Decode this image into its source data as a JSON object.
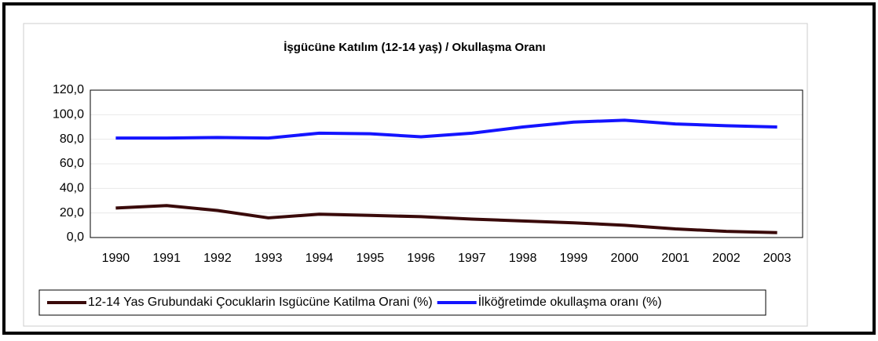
{
  "chart_data": {
    "type": "line",
    "title": "İşgücüne Katılım (12-14 yaş) / Okullaşma Oranı",
    "categories": [
      "1990",
      "1991",
      "1992",
      "1993",
      "1994",
      "1995",
      "1996",
      "1997",
      "1998",
      "1999",
      "2000",
      "2001",
      "2002",
      "2003"
    ],
    "series": [
      {
        "name": "12-14 Yas Grubundaki Çocuklarin Isgücüne Katilma Orani (%)",
        "color": "#3a0a0a",
        "values": [
          24,
          26,
          22,
          16,
          19,
          18,
          17,
          15,
          13.5,
          12,
          10,
          7,
          5,
          4
        ]
      },
      {
        "name": "İlköğretimde okullaşma oranı (%)",
        "color": "#1414ff",
        "values": [
          81,
          81,
          81.5,
          81,
          85,
          84.5,
          82,
          85,
          90,
          94,
          95.5,
          92.5,
          91,
          90
        ]
      }
    ],
    "ylim": [
      0,
      120
    ],
    "yticks": [
      {
        "value": 0,
        "label": "0,0"
      },
      {
        "value": 20,
        "label": "20,0"
      },
      {
        "value": 40,
        "label": "40,0"
      },
      {
        "value": 60,
        "label": "60,0"
      },
      {
        "value": 80,
        "label": "80,0"
      },
      {
        "value": 100,
        "label": "100,0"
      },
      {
        "value": 120,
        "label": "120,0"
      }
    ],
    "grid": true
  }
}
